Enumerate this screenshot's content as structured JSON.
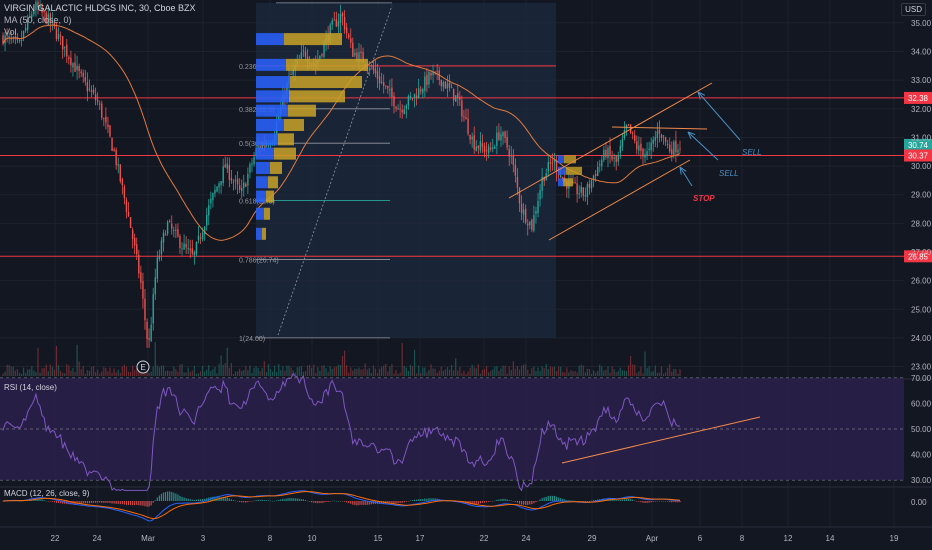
{
  "header": {
    "symbol_line": "VIRGIN GALACTIC HLDGS INC, 30, Cboe BZX",
    "ma_label": "MA (50, close, 0)",
    "vol_label": "Vol"
  },
  "currency": "USD",
  "rsi_label": "RSI (14, close)",
  "macd_label": "MACD (12, 26, close, 9)",
  "event_marker": "E",
  "colors": {
    "background": "#131722",
    "up": "#26a69a",
    "down": "#ef5350",
    "ma": "#e07a3f",
    "trendline": "#f08a4b",
    "horizontal_level": "#f23645",
    "rsi_line": "#7e57c2",
    "rsi_band": "#2a1f4a",
    "macd_line": "#2962ff",
    "signal_line": "#ff6d00",
    "annotation": "#4a90c2"
  },
  "chart_data": {
    "type": "candlestick",
    "x_ticks": [
      "22",
      "24",
      "Mar",
      "3",
      "8",
      "10",
      "15",
      "17",
      "22",
      "24",
      "29",
      "Apr",
      "6",
      "8",
      "12",
      "14",
      "19"
    ],
    "y_ticks": [
      23.0,
      24.0,
      25.0,
      26.0,
      27.0,
      28.0,
      29.0,
      30.0,
      31.0,
      32.0,
      33.0,
      34.0,
      35.0
    ],
    "ylim": [
      22.6,
      35.8
    ],
    "ma_period": 50,
    "horizontal_levels": [
      33.5,
      32.38,
      30.37,
      26.85
    ],
    "price_labels": [
      {
        "text": "32.38",
        "value": 32.38,
        "color": "#f23645"
      },
      {
        "text": "30.74",
        "value": 30.74,
        "color": "#26a69a"
      },
      {
        "text": "30.37",
        "value": 30.37,
        "color": "#f23645"
      },
      {
        "text": "26.85",
        "value": 26.85,
        "color": "#f23645"
      }
    ],
    "fibonacci": [
      {
        "label": "0.236",
        "value": 33.5
      },
      {
        "label": "0.382(32.0)",
        "value": 32.0
      },
      {
        "label": "0.5(30.8)",
        "value": 30.8
      },
      {
        "label": "0.618(28.8)",
        "value": 28.8
      },
      {
        "label": "0.786(26.74)",
        "value": 26.74
      },
      {
        "label": "1(24.00)",
        "value": 24.0
      }
    ],
    "annotations": [
      {
        "text": "SELL",
        "color": "#4a90c2"
      },
      {
        "text": "SELL",
        "color": "#4a90c2"
      },
      {
        "text": "STOP",
        "color": "#f23645"
      }
    ],
    "rsi": {
      "y_ticks": [
        30.0,
        40.0,
        50.0,
        60.0,
        70.0
      ],
      "ylim": [
        25,
        75
      ],
      "upper_band": 70,
      "lower_band": 30
    },
    "macd": {
      "y_ticks": [
        0.0
      ]
    },
    "ohlc_path": [
      [
        0,
        34.5
      ],
      [
        6,
        34.2
      ],
      [
        12,
        35.6
      ],
      [
        18,
        35.0
      ],
      [
        24,
        34.0
      ],
      [
        30,
        33.0
      ],
      [
        36,
        32.2
      ],
      [
        42,
        30.5
      ],
      [
        48,
        28.0
      ],
      [
        52,
        26.0
      ],
      [
        55,
        23.6
      ],
      [
        58,
        26.5
      ],
      [
        62,
        28.0
      ],
      [
        68,
        27.2
      ],
      [
        72,
        26.8
      ],
      [
        78,
        28.6
      ],
      [
        84,
        30.0
      ],
      [
        90,
        29.0
      ],
      [
        96,
        30.6
      ],
      [
        102,
        31.0
      ],
      [
        108,
        33.0
      ],
      [
        114,
        34.0
      ],
      [
        118,
        33.5
      ],
      [
        124,
        34.8
      ],
      [
        128,
        35.3
      ],
      [
        132,
        34.0
      ],
      [
        138,
        33.6
      ],
      [
        144,
        32.8
      ],
      [
        150,
        32.0
      ],
      [
        156,
        32.5
      ],
      [
        162,
        33.2
      ],
      [
        166,
        33.0
      ],
      [
        172,
        32.3
      ],
      [
        178,
        30.8
      ],
      [
        184,
        30.5
      ],
      [
        188,
        31.2
      ],
      [
        192,
        30.4
      ],
      [
        196,
        28.5
      ],
      [
        200,
        27.9
      ],
      [
        204,
        29.6
      ],
      [
        208,
        30.2
      ],
      [
        212,
        29.5
      ],
      [
        216,
        29.2
      ],
      [
        220,
        29.0
      ],
      [
        224,
        29.8
      ],
      [
        228,
        30.5
      ],
      [
        232,
        30.1
      ],
      [
        236,
        31.4
      ],
      [
        240,
        30.6
      ],
      [
        244,
        30.4
      ],
      [
        248,
        31.3
      ],
      [
        252,
        30.6
      ],
      [
        256,
        30.74
      ]
    ]
  }
}
